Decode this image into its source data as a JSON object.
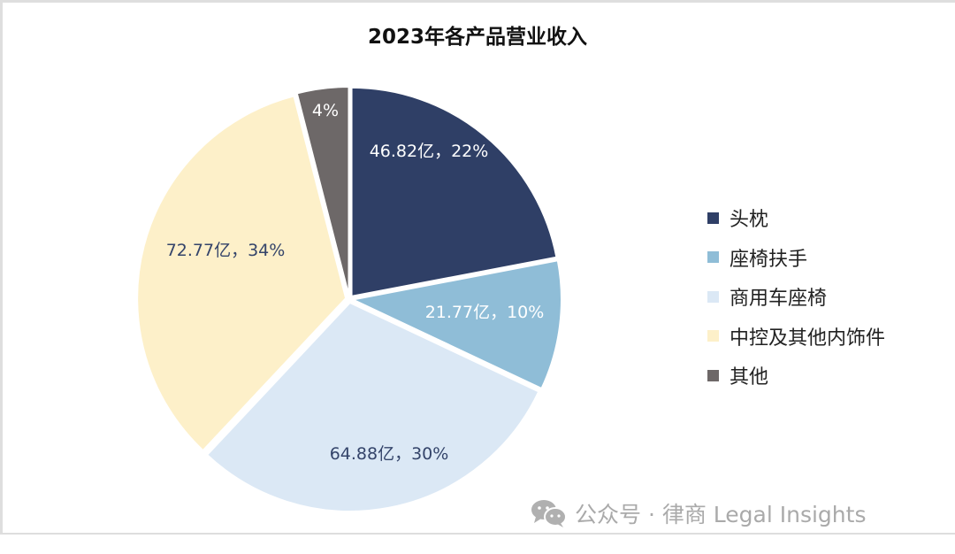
{
  "chart_data": {
    "type": "pie",
    "title": "2023年各产品营业收入",
    "unit": "亿",
    "slices": [
      {
        "name": "头枕",
        "value": 46.82,
        "percent": 22,
        "label": "46.82亿，22%",
        "color": "#2f3f66",
        "label_color": "#ffffff"
      },
      {
        "name": "座椅扶手",
        "value": 21.77,
        "percent": 10,
        "label": "21.77亿，10%",
        "color": "#8fbdd7",
        "label_color": "#ffffff"
      },
      {
        "name": "商用车座椅",
        "value": 64.88,
        "percent": 30,
        "label": "64.88亿，30%",
        "color": "#dbe8f5",
        "label_color": "#34446a"
      },
      {
        "name": "中控及其他内饰件",
        "value": 72.77,
        "percent": 34,
        "label": "72.77亿，34%",
        "color": "#fdf0c9",
        "label_color": "#34446a"
      },
      {
        "name": "其他",
        "value": null,
        "percent": 4,
        "label": "4%",
        "color": "#6d6868",
        "label_color": "#ffffff"
      }
    ],
    "legend_position": "right"
  },
  "watermark": {
    "text": "公众号 · 律商 Legal Insights",
    "icon": "wechat-icon"
  }
}
